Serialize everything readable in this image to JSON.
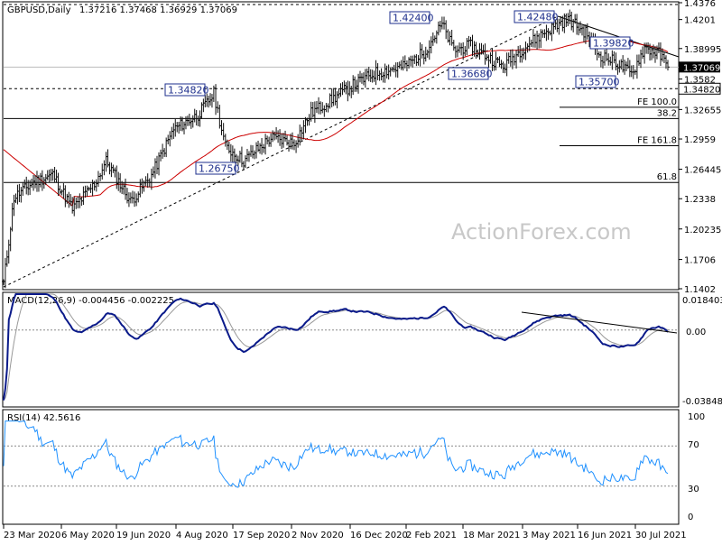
{
  "price_panel": {
    "title": "GBPUSD,Daily",
    "ohlc": "1.37216 1.37468 1.36929 1.37069",
    "watermark": "ActionForex.com"
  },
  "macd_panel": {
    "title": "MACD(12,26,9) -0.004456 -0.002225",
    "ticks": [
      "0.018403",
      "0.00",
      "-0.038483"
    ]
  },
  "rsi_panel": {
    "title": "RSI(14) 42.5616",
    "ticks": [
      "100",
      "70",
      "30",
      "0"
    ]
  },
  "colors": {
    "price_bars": "#101010",
    "sma": "#cc0000",
    "trendline": "#000000",
    "macd": "#0a1a8a",
    "macd_signal": "#999999",
    "rsi": "#1e90ff",
    "label_text": "#1e2f8c",
    "current_price_bg": "#000000"
  },
  "chart_data": [
    {
      "type": "ohlc",
      "panel": "price",
      "symbol": "GBPUSD",
      "timeframe": "Daily",
      "x_ticks": [
        "23 Mar 2020",
        "6 May 2020",
        "19 Jun 2020",
        "4 Aug 2020",
        "17 Sep 2020",
        "2 Nov 2020",
        "16 Dec 2020",
        "2 Feb 2021",
        "18 Mar 2021",
        "3 May 2021",
        "16 Jun 2021",
        "30 Jul 2021"
      ],
      "y_ticks": [
        1.4376,
        1.4201,
        1.38995,
        1.3582,
        1.32655,
        1.2959,
        1.26445,
        1.2338,
        1.20235,
        1.1706,
        1.1402
      ],
      "ylim": [
        1.1402,
        1.4376
      ],
      "current_price": 1.37069,
      "level_marker": 1.3482,
      "annotations": [
        {
          "label": "1.42400",
          "x": "Feb 2021",
          "y": 1.424
        },
        {
          "label": "1.42480",
          "x": "Jun 2021",
          "y": 1.4248
        },
        {
          "label": "1.39820",
          "x": "Jul 2021",
          "y": 1.3982
        },
        {
          "label": "1.36680",
          "x": "Apr 2021",
          "y": 1.3668
        },
        {
          "label": "1.35700",
          "x": "Jul 2021",
          "y": 1.357
        },
        {
          "label": "1.34820",
          "x": "Sep 2020",
          "y": 1.3482
        },
        {
          "label": "1.26750",
          "x": "Sep 2020",
          "y": 1.2675
        }
      ],
      "fib_levels": [
        {
          "label": "FE 100.0",
          "y": 1.3289
        },
        {
          "label": "38.2",
          "y": 1.3172
        },
        {
          "label": "FE 161.8",
          "y": 1.2889
        },
        {
          "label": "61.8",
          "y": 1.2507
        }
      ],
      "close_series": [
        {
          "date": "2020-03-23",
          "close": 1.146
        },
        {
          "date": "2020-03-31",
          "close": 1.235
        },
        {
          "date": "2020-04-15",
          "close": 1.251
        },
        {
          "date": "2020-04-30",
          "close": 1.259
        },
        {
          "date": "2020-05-15",
          "close": 1.223
        },
        {
          "date": "2020-06-01",
          "close": 1.249
        },
        {
          "date": "2020-06-10",
          "close": 1.273
        },
        {
          "date": "2020-06-29",
          "close": 1.231
        },
        {
          "date": "2020-07-15",
          "close": 1.258
        },
        {
          "date": "2020-08-01",
          "close": 1.306
        },
        {
          "date": "2020-08-20",
          "close": 1.321
        },
        {
          "date": "2020-09-01",
          "close": 1.343
        },
        {
          "date": "2020-09-10",
          "close": 1.288
        },
        {
          "date": "2020-09-24",
          "close": 1.273
        },
        {
          "date": "2020-10-15",
          "close": 1.297
        },
        {
          "date": "2020-11-02",
          "close": 1.292
        },
        {
          "date": "2020-11-15",
          "close": 1.323
        },
        {
          "date": "2020-12-01",
          "close": 1.337
        },
        {
          "date": "2020-12-16",
          "close": 1.351
        },
        {
          "date": "2021-01-04",
          "close": 1.365
        },
        {
          "date": "2021-01-25",
          "close": 1.371
        },
        {
          "date": "2021-02-10",
          "close": 1.386
        },
        {
          "date": "2021-02-24",
          "close": 1.415
        },
        {
          "date": "2021-03-05",
          "close": 1.388
        },
        {
          "date": "2021-03-18",
          "close": 1.393
        },
        {
          "date": "2021-04-12",
          "close": 1.371
        },
        {
          "date": "2021-04-28",
          "close": 1.391
        },
        {
          "date": "2021-05-14",
          "close": 1.407
        },
        {
          "date": "2021-06-01",
          "close": 1.421
        },
        {
          "date": "2021-06-16",
          "close": 1.405
        },
        {
          "date": "2021-06-25",
          "close": 1.383
        },
        {
          "date": "2021-07-08",
          "close": 1.376
        },
        {
          "date": "2021-07-20",
          "close": 1.363
        },
        {
          "date": "2021-07-30",
          "close": 1.391
        },
        {
          "date": "2021-08-10",
          "close": 1.385
        },
        {
          "date": "2021-08-17",
          "close": 1.3707
        }
      ]
    },
    {
      "type": "line",
      "panel": "macd",
      "name": "MACD(12,26,9)",
      "values_label": "-0.004456 -0.002225",
      "ylim": [
        -0.038483,
        0.018403
      ]
    },
    {
      "type": "line",
      "panel": "rsi",
      "name": "RSI(14)",
      "current": 42.5616,
      "ylim": [
        0,
        100
      ],
      "reference_levels": [
        70,
        30
      ]
    }
  ]
}
